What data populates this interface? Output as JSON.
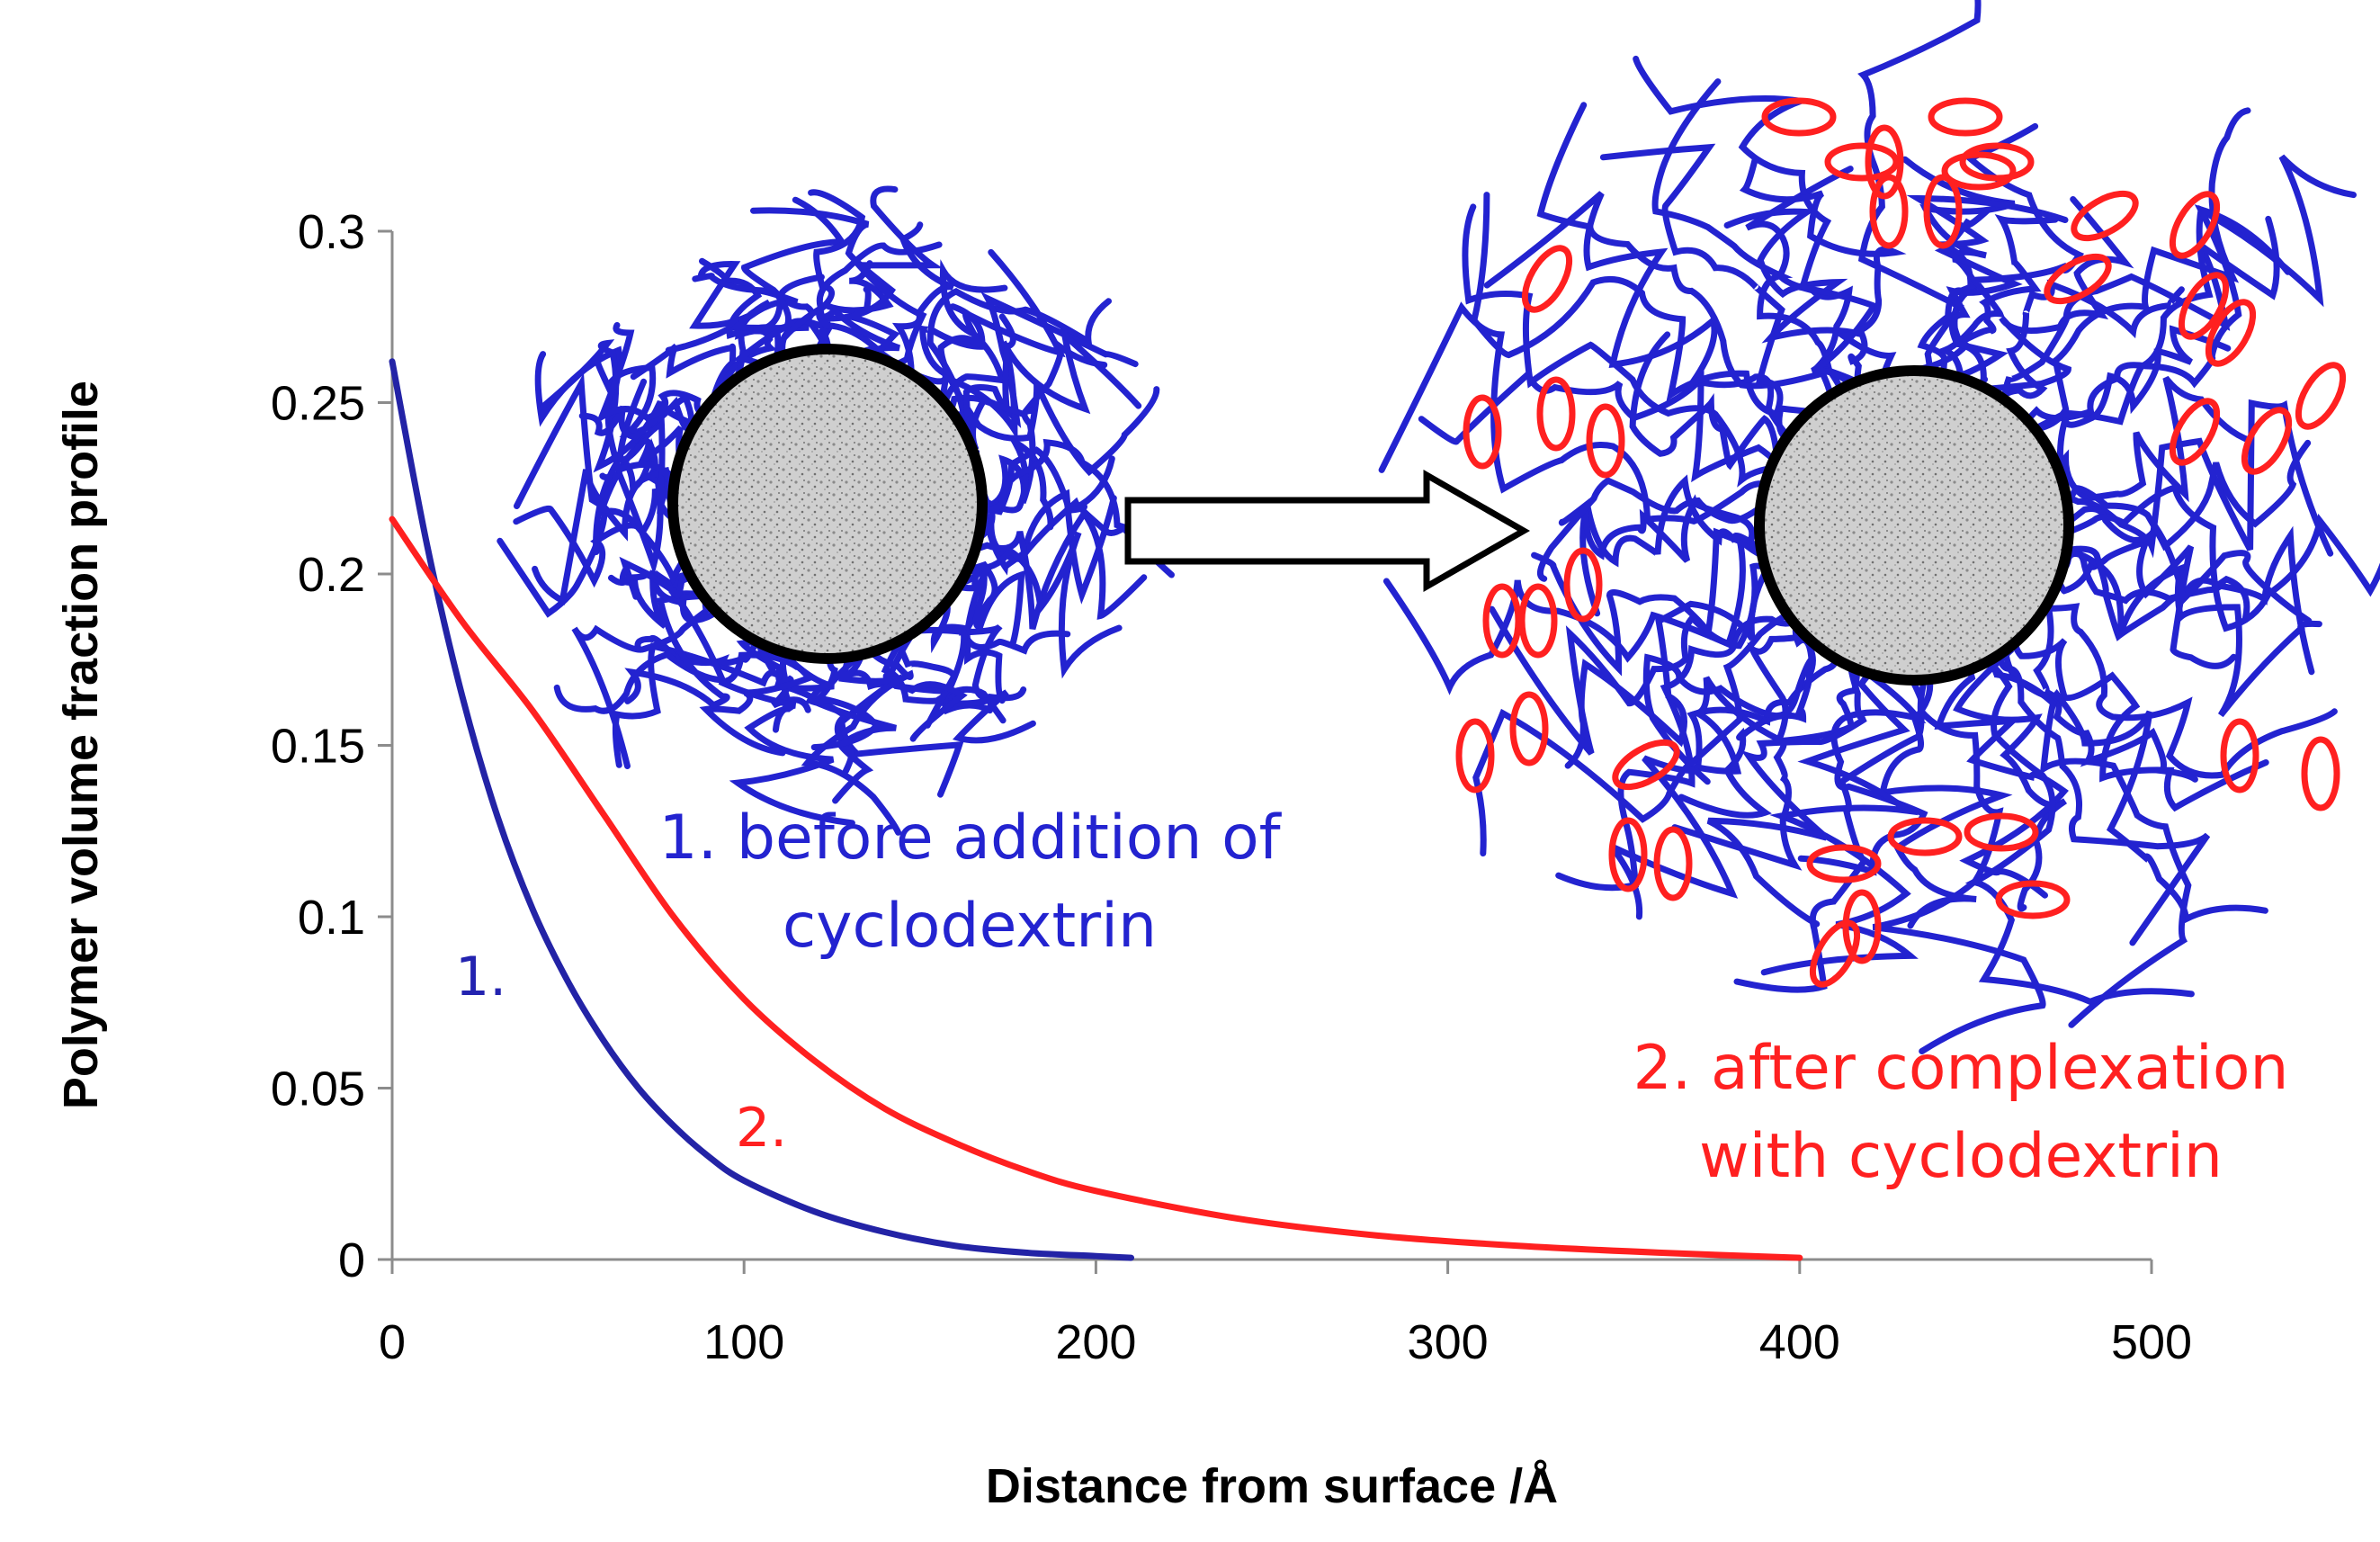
{
  "chart_data": {
    "type": "line",
    "xlabel": "Distance from surface /Å",
    "ylabel": "Polymer volume fraction profile",
    "xlim": [
      0,
      500
    ],
    "ylim": [
      0,
      0.3
    ],
    "x_ticks": [
      "0",
      "100",
      "200",
      "300",
      "400",
      "500"
    ],
    "y_ticks": [
      "0",
      "0.05",
      "0.1",
      "0.15",
      "0.2",
      "0.25",
      "0.3"
    ],
    "grid": false,
    "series": [
      {
        "name": "1.",
        "color": "#2323a6",
        "x": [
          0,
          10,
          20,
          30,
          40,
          50,
          60,
          70,
          80,
          90,
          100,
          120,
          140,
          160,
          180,
          200,
          210
        ],
        "y": [
          0.262,
          0.208,
          0.164,
          0.129,
          0.102,
          0.081,
          0.064,
          0.05,
          0.039,
          0.03,
          0.023,
          0.014,
          0.008,
          0.004,
          0.002,
          0.001,
          0.0005
        ]
      },
      {
        "name": "2.",
        "color": "#ff2020",
        "x": [
          0,
          20,
          40,
          60,
          80,
          100,
          120,
          140,
          160,
          180,
          200,
          240,
          280,
          320,
          360,
          400
        ],
        "y": [
          0.216,
          0.186,
          0.16,
          0.13,
          0.1,
          0.076,
          0.058,
          0.044,
          0.034,
          0.026,
          0.02,
          0.012,
          0.007,
          0.004,
          0.002,
          0.0005
        ]
      }
    ]
  },
  "captions": {
    "before_line1": "1. before addition of",
    "before_line2": "cyclodextrin",
    "after_line1": "2. after complexation",
    "after_line2": "with cyclodextrin"
  },
  "colors": {
    "polymer": "#2323d0",
    "cyclodextrin": "#ff2020",
    "particle_fill": "#c9c9c9",
    "particle_border": "#000000"
  }
}
